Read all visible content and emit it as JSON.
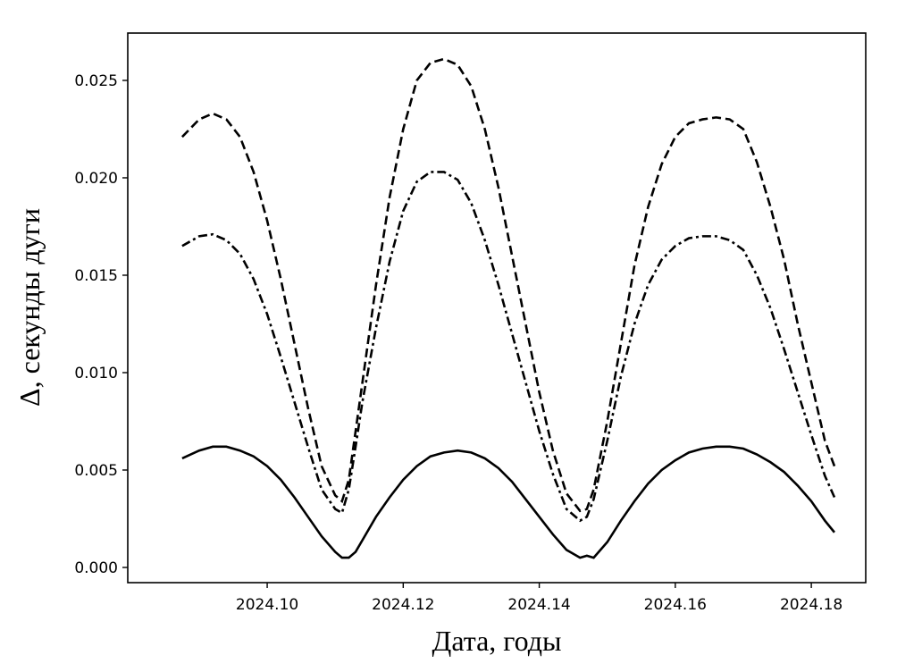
{
  "chart_data": {
    "type": "line",
    "x_label": "Дата, годы",
    "y_label": "Δ, секунды дуги",
    "x": [
      2024.0875,
      2024.09,
      2024.092,
      2024.094,
      2024.096,
      2024.098,
      2024.1,
      2024.102,
      2024.104,
      2024.106,
      2024.108,
      2024.11,
      2024.111,
      2024.112,
      2024.113,
      2024.114,
      2024.116,
      2024.118,
      2024.12,
      2024.122,
      2024.124,
      2024.126,
      2024.128,
      2024.13,
      2024.132,
      2024.134,
      2024.136,
      2024.138,
      2024.14,
      2024.142,
      2024.144,
      2024.146,
      2024.147,
      2024.148,
      2024.15,
      2024.152,
      2024.154,
      2024.156,
      2024.158,
      2024.16,
      2024.162,
      2024.164,
      2024.166,
      2024.168,
      2024.17,
      2024.172,
      2024.174,
      2024.176,
      2024.178,
      2024.18,
      2024.182,
      2024.1834
    ],
    "series": [
      {
        "color": "#000000",
        "dash": "dashed",
        "values": [
          0.0221,
          0.023,
          0.0233,
          0.023,
          0.0221,
          0.0203,
          0.0178,
          0.0148,
          0.0115,
          0.0082,
          0.0052,
          0.0037,
          0.0034,
          0.0045,
          0.007,
          0.0095,
          0.0145,
          0.019,
          0.0225,
          0.025,
          0.0259,
          0.0261,
          0.0258,
          0.0247,
          0.0225,
          0.0195,
          0.016,
          0.0125,
          0.009,
          0.006,
          0.0038,
          0.0029,
          0.003,
          0.004,
          0.0075,
          0.0115,
          0.0155,
          0.0185,
          0.0207,
          0.0221,
          0.0228,
          0.023,
          0.0231,
          0.023,
          0.0225,
          0.0208,
          0.0185,
          0.0158,
          0.0125,
          0.0095,
          0.0065,
          0.0052
        ]
      },
      {
        "color": "#000000",
        "dash": "dashdot",
        "values": [
          0.0165,
          0.017,
          0.0171,
          0.0168,
          0.0161,
          0.0148,
          0.013,
          0.0108,
          0.0085,
          0.0062,
          0.004,
          0.003,
          0.0028,
          0.004,
          0.0062,
          0.0085,
          0.0123,
          0.0157,
          0.0183,
          0.0198,
          0.0203,
          0.0203,
          0.0199,
          0.0187,
          0.0168,
          0.0145,
          0.012,
          0.0095,
          0.007,
          0.0048,
          0.003,
          0.0024,
          0.0026,
          0.0035,
          0.0065,
          0.0098,
          0.0125,
          0.0145,
          0.0158,
          0.0165,
          0.0169,
          0.017,
          0.017,
          0.0168,
          0.0163,
          0.015,
          0.0133,
          0.0112,
          0.009,
          0.0068,
          0.0047,
          0.0036
        ]
      },
      {
        "color": "#000000",
        "dash": "solid",
        "values": [
          0.0056,
          0.006,
          0.0062,
          0.0062,
          0.006,
          0.0057,
          0.0052,
          0.0045,
          0.0036,
          0.0026,
          0.0016,
          0.0008,
          0.0005,
          0.0005,
          0.0008,
          0.0014,
          0.0026,
          0.0036,
          0.0045,
          0.0052,
          0.0057,
          0.0059,
          0.006,
          0.0059,
          0.0056,
          0.0051,
          0.0044,
          0.0035,
          0.0026,
          0.0017,
          0.0009,
          0.0005,
          0.0006,
          0.0005,
          0.0013,
          0.0024,
          0.0034,
          0.0043,
          0.005,
          0.0055,
          0.0059,
          0.0061,
          0.0062,
          0.0062,
          0.0061,
          0.0058,
          0.0054,
          0.0049,
          0.0042,
          0.0034,
          0.0024,
          0.0018
        ]
      }
    ],
    "xlim": [
      2024.0795,
      2024.188
    ],
    "ylim": [
      -0.00078,
      0.02743
    ],
    "xticks": [
      {
        "value": 2024.1,
        "label": "2024.10"
      },
      {
        "value": 2024.12,
        "label": "2024.12"
      },
      {
        "value": 2024.14,
        "label": "2024.14"
      },
      {
        "value": 2024.16,
        "label": "2024.16"
      },
      {
        "value": 2024.18,
        "label": "2024.18"
      }
    ],
    "yticks": [
      {
        "value": 0,
        "label": "0.000"
      },
      {
        "value": 0.005,
        "label": "0.005"
      },
      {
        "value": 0.01,
        "label": "0.010"
      },
      {
        "value": 0.015,
        "label": "0.015"
      },
      {
        "value": 0.02,
        "label": "0.020"
      },
      {
        "value": 0.025,
        "label": "0.025"
      }
    ],
    "grid": false
  }
}
